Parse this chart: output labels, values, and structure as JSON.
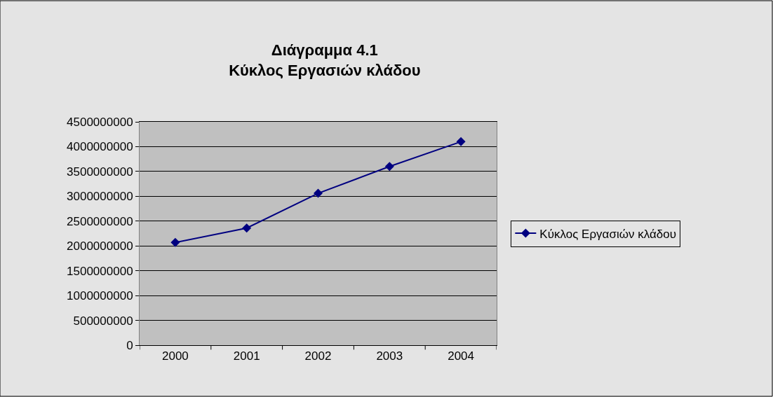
{
  "chart_data": {
    "type": "line",
    "title": "Διάγραμμα 4.1\nΚύκλος Εργασιών κλάδου",
    "categories": [
      "2000",
      "2001",
      "2002",
      "2003",
      "2004"
    ],
    "series": [
      {
        "name": "Κύκλος Εργασιών κλάδου",
        "color": "#000080",
        "values": [
          2070000000,
          2360000000,
          3060000000,
          3600000000,
          4100000000
        ]
      }
    ],
    "ylim": [
      0,
      4500000000
    ],
    "yticks": [
      0,
      500000000,
      1000000000,
      1500000000,
      2000000000,
      2500000000,
      3000000000,
      3500000000,
      4000000000,
      4500000000
    ],
    "grid": "y",
    "legend": "right",
    "marker": "diamond",
    "line_style": "solid"
  }
}
